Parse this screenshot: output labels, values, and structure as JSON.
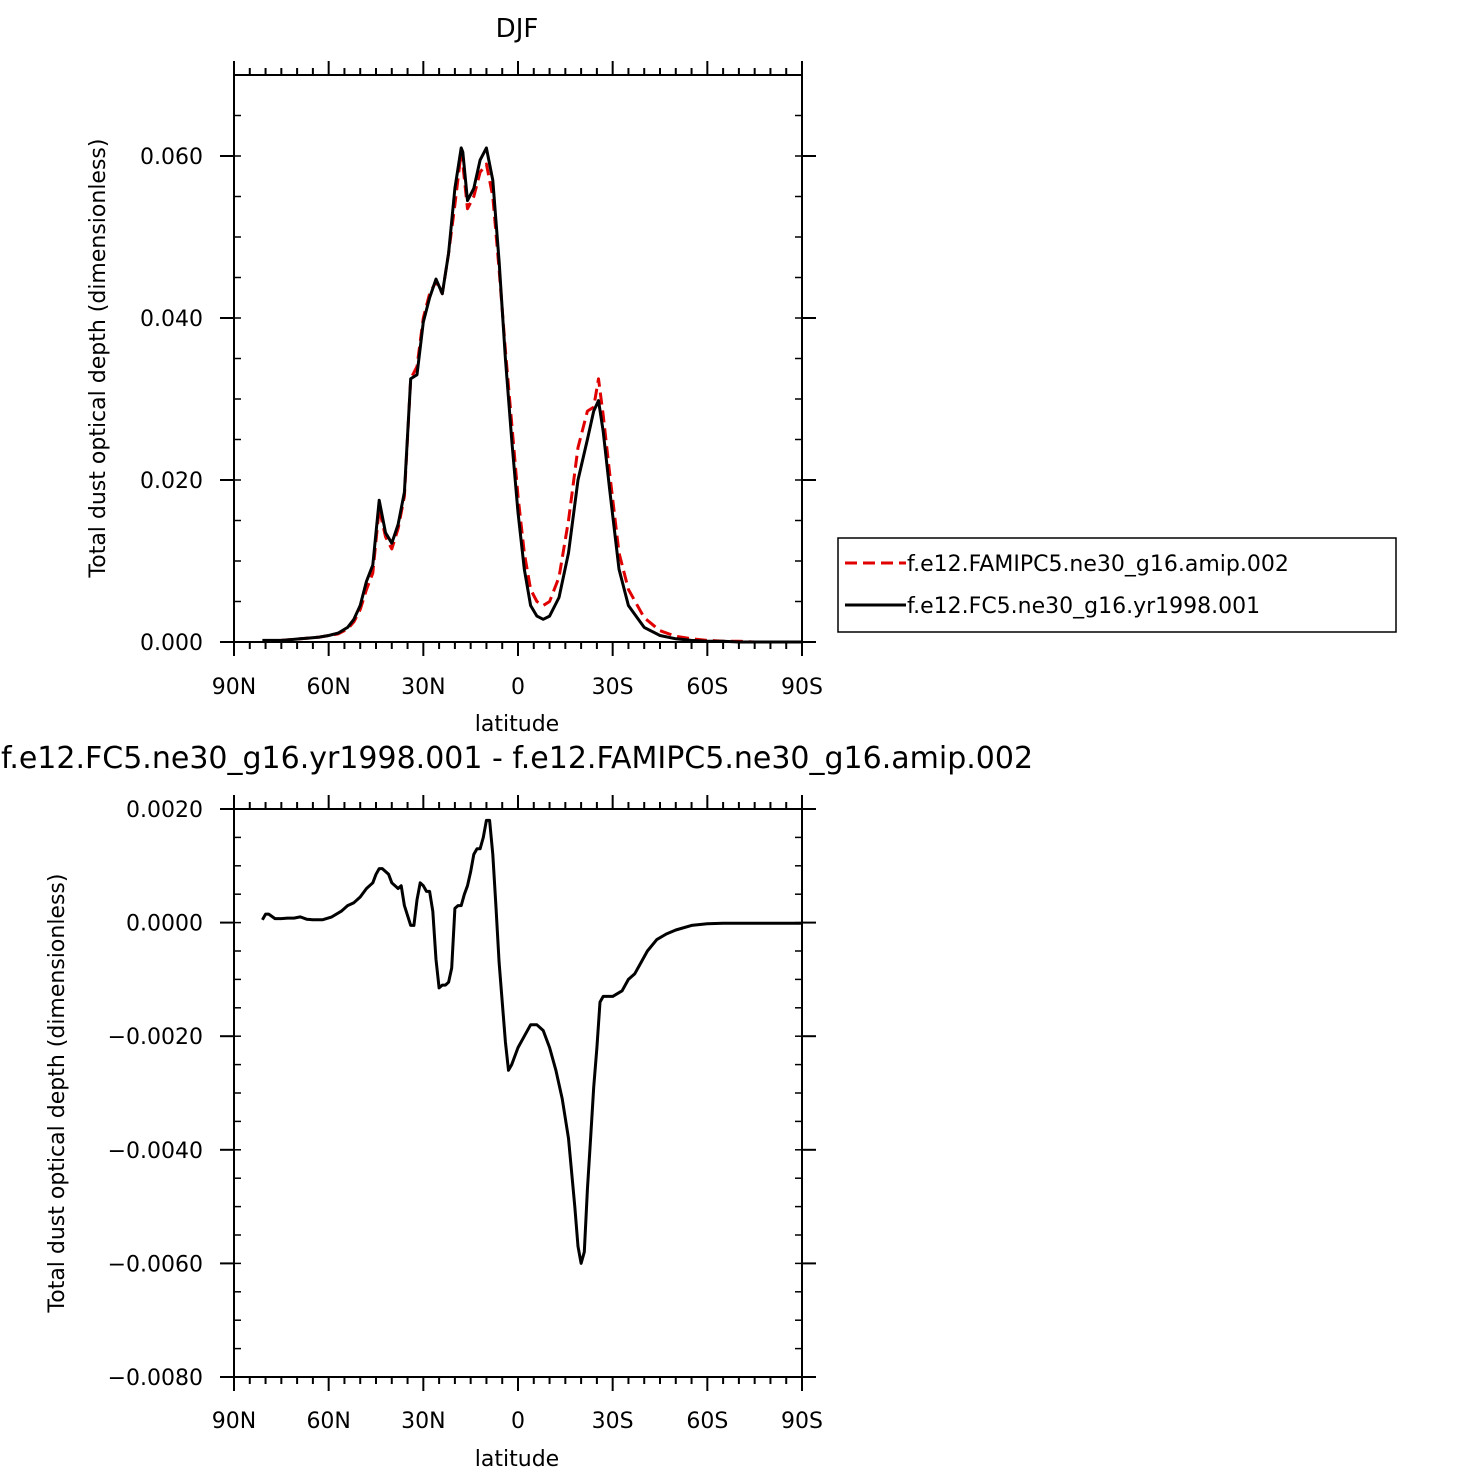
{
  "chart_data": [
    {
      "type": "line",
      "title": "DJF",
      "xlabel": "latitude",
      "ylabel": "Total dust optical depth (dimensionless)",
      "x_ticks": [
        "90N",
        "60N",
        "30N",
        "0",
        "30S",
        "60S",
        "90S"
      ],
      "x_tick_values": [
        90,
        60,
        30,
        0,
        -30,
        -60,
        -90
      ],
      "xlim": [
        90,
        -90
      ],
      "ylim": [
        0.0,
        0.07
      ],
      "y_ticks": [
        "0.000",
        "0.020",
        "0.040",
        "0.060"
      ],
      "y_tick_values": [
        0.0,
        0.02,
        0.04,
        0.06
      ],
      "grid": false,
      "legend_placement": "right, outside plot",
      "series": [
        {
          "name": "f.e12.FAMIPC5.ne30_g16.amip.002",
          "color": "#e00000",
          "dash": "dashed",
          "x": [
            81,
            78,
            75,
            72,
            69,
            66,
            63,
            60,
            57,
            54,
            52,
            50,
            48,
            46,
            44,
            42,
            40,
            38,
            36,
            34,
            32,
            30,
            28,
            26,
            24,
            22,
            20,
            18,
            17.5,
            16,
            14,
            12,
            10,
            8,
            6,
            4,
            2,
            0,
            -2,
            -4,
            -6,
            -8,
            -10,
            -13,
            -16,
            -19,
            -22,
            -24,
            -25.5,
            -27,
            -29,
            -32,
            -35,
            -40,
            -45,
            -50,
            -55,
            -60,
            -65,
            -70,
            -75,
            -80,
            -85,
            -90
          ],
          "y": [
            0.0001,
            0.0001,
            0.0002,
            0.0003,
            0.0004,
            0.0005,
            0.0006,
            0.0008,
            0.001,
            0.0016,
            0.0025,
            0.004,
            0.0065,
            0.0085,
            0.0165,
            0.013,
            0.0115,
            0.014,
            0.018,
            0.0325,
            0.034,
            0.04,
            0.043,
            0.0445,
            0.043,
            0.048,
            0.054,
            0.0605,
            0.059,
            0.0535,
            0.055,
            0.058,
            0.059,
            0.055,
            0.046,
            0.036,
            0.027,
            0.018,
            0.011,
            0.0065,
            0.005,
            0.0045,
            0.005,
            0.008,
            0.015,
            0.024,
            0.0285,
            0.029,
            0.0325,
            0.028,
            0.021,
            0.011,
            0.0065,
            0.003,
            0.0014,
            0.0007,
            0.0004,
            0.0002,
            0.0001,
            0.0001,
            0.0,
            0.0,
            0.0,
            0.0
          ]
        },
        {
          "name": "f.e12.FC5.ne30_g16.yr1998.001",
          "color": "#000000",
          "dash": "solid",
          "x": [
            81,
            78,
            75,
            72,
            69,
            66,
            63,
            60,
            57,
            54,
            52,
            50,
            48,
            46,
            44,
            42,
            40,
            38,
            36,
            34,
            32,
            30,
            28,
            26,
            24,
            22,
            20,
            18,
            17.5,
            16,
            14,
            12,
            10,
            8,
            6,
            4,
            2,
            0,
            -2,
            -4,
            -6,
            -8,
            -10,
            -13,
            -16,
            -19,
            -22,
            -24,
            -25.5,
            -27,
            -29,
            -32,
            -35,
            -40,
            -45,
            -50,
            -55,
            -60,
            -65,
            -70,
            -75,
            -80,
            -85,
            -90
          ],
          "y": [
            0.0002,
            0.0002,
            0.0002,
            0.0003,
            0.0004,
            0.0005,
            0.0006,
            0.0008,
            0.0011,
            0.0018,
            0.0028,
            0.0045,
            0.0075,
            0.0095,
            0.0175,
            0.0135,
            0.0122,
            0.0145,
            0.0185,
            0.0325,
            0.033,
            0.0395,
            0.0425,
            0.0448,
            0.043,
            0.048,
            0.056,
            0.061,
            0.0605,
            0.0545,
            0.056,
            0.0595,
            0.061,
            0.057,
            0.047,
            0.035,
            0.025,
            0.016,
            0.009,
            0.0045,
            0.0032,
            0.0028,
            0.0032,
            0.0055,
            0.011,
            0.02,
            0.025,
            0.0285,
            0.0298,
            0.026,
            0.019,
            0.009,
            0.0045,
            0.0018,
            0.0008,
            0.0004,
            0.0002,
            0.0001,
            0.0001,
            0.0,
            0.0,
            0.0,
            0.0,
            0.0
          ]
        }
      ]
    },
    {
      "type": "line",
      "title": "f.e12.FC5.ne30_g16.yr1998.001 - f.e12.FAMIPC5.ne30_g16.amip.002",
      "xlabel": "latitude",
      "ylabel": "Total dust optical depth (dimensionless)",
      "x_ticks": [
        "90N",
        "60N",
        "30N",
        "0",
        "30S",
        "60S",
        "90S"
      ],
      "x_tick_values": [
        90,
        60,
        30,
        0,
        -30,
        -60,
        -90
      ],
      "xlim": [
        90,
        -90
      ],
      "ylim": [
        -0.008,
        0.002
      ],
      "y_ticks": [
        "0.0020",
        "0.0000",
        "−0.0020",
        "−0.0040",
        "−0.0060",
        "−0.0080"
      ],
      "y_tick_values": [
        0.002,
        0.0,
        -0.002,
        -0.004,
        -0.006,
        -0.008
      ],
      "grid": false,
      "series": [
        {
          "color": "#000000",
          "dash": "solid",
          "x": [
            81,
            80,
            79,
            77,
            75,
            73,
            71,
            69,
            67,
            65,
            62,
            59,
            56,
            54,
            52,
            50,
            48,
            46,
            45,
            44,
            43,
            42,
            41,
            40,
            38,
            37,
            36,
            34,
            33,
            32,
            31,
            30,
            29,
            28,
            27,
            26,
            25,
            24,
            23,
            22,
            21,
            20,
            19,
            18,
            17,
            16,
            15,
            14,
            13,
            12,
            11,
            10,
            9,
            8,
            7,
            6,
            4,
            3,
            2,
            0,
            -2,
            -4,
            -6,
            -8,
            -10,
            -12,
            -14,
            -16,
            -18,
            -19,
            -20,
            -21,
            -22,
            -23,
            -24,
            -25,
            -26,
            -27,
            -28,
            -29,
            -30,
            -33,
            -35,
            -37,
            -39,
            -41,
            -44,
            -47,
            -50,
            -55,
            -60,
            -65,
            -70,
            -80,
            -90
          ],
          "y": [
            5e-05,
            0.00015,
            0.00015,
            7e-05,
            7e-05,
            8e-05,
            8e-05,
            0.0001,
            6e-05,
            5e-05,
            5e-05,
            0.0001,
            0.0002,
            0.0003,
            0.00035,
            0.00045,
            0.0006,
            0.0007,
            0.00085,
            0.00095,
            0.00095,
            0.0009,
            0.00085,
            0.0007,
            0.0006,
            0.00065,
            0.0003,
            -5e-05,
            -5e-05,
            0.0004,
            0.0007,
            0.00065,
            0.00055,
            0.00055,
            0.0002,
            -0.00065,
            -0.00115,
            -0.0011,
            -0.0011,
            -0.00105,
            -0.0008,
            0.00025,
            0.0003,
            0.0003,
            0.0005,
            0.00065,
            0.0009,
            0.0012,
            0.0013,
            0.0013,
            0.0015,
            0.0018,
            0.0018,
            0.0012,
            0.0003,
            -0.0007,
            -0.0021,
            -0.0026,
            -0.0025,
            -0.0022,
            -0.002,
            -0.0018,
            -0.0018,
            -0.0019,
            -0.0022,
            -0.0026,
            -0.0031,
            -0.0038,
            -0.005,
            -0.0057,
            -0.006,
            -0.0058,
            -0.0047,
            -0.0038,
            -0.0029,
            -0.0022,
            -0.0014,
            -0.0013,
            -0.0013,
            -0.0013,
            -0.0013,
            -0.0012,
            -0.001,
            -0.0009,
            -0.0007,
            -0.0005,
            -0.0003,
            -0.0002,
            -0.00013,
            -5e-05,
            -2e-05,
            -1e-05,
            -1e-05,
            -1e-05,
            -1e-05
          ]
        }
      ]
    }
  ]
}
